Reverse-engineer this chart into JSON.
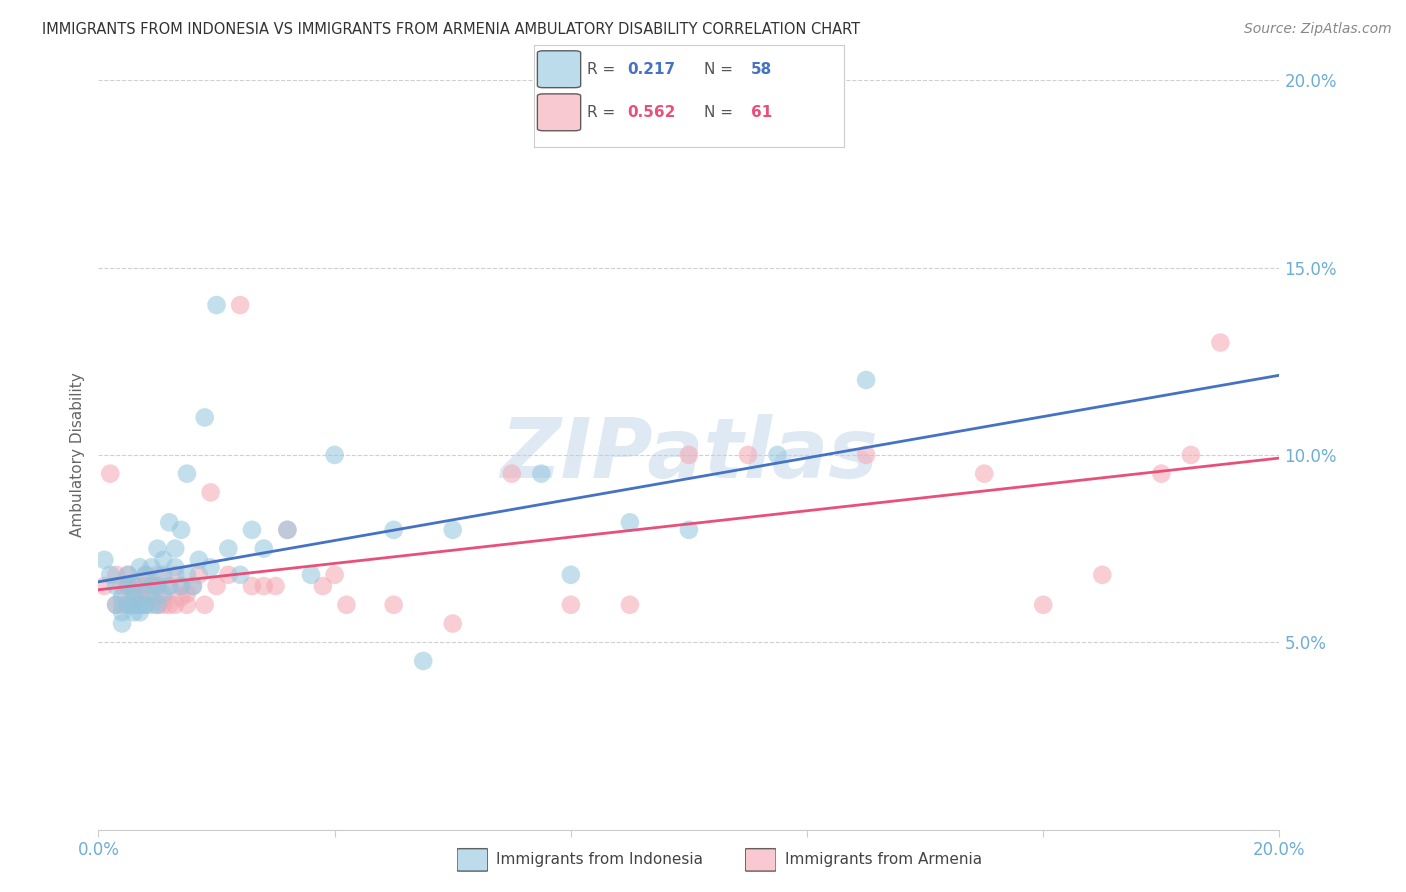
{
  "title": "IMMIGRANTS FROM INDONESIA VS IMMIGRANTS FROM ARMENIA AMBULATORY DISABILITY CORRELATION CHART",
  "source": "Source: ZipAtlas.com",
  "ylabel": "Ambulatory Disability",
  "xlim": [
    0.0,
    0.2
  ],
  "ylim": [
    0.0,
    0.2
  ],
  "ytick_labels": [
    "",
    "5.0%",
    "10.0%",
    "15.0%",
    "20.0%"
  ],
  "ytick_vals": [
    0.0,
    0.05,
    0.1,
    0.15,
    0.2
  ],
  "xtick_vals": [
    0.0,
    0.04,
    0.08,
    0.12,
    0.16,
    0.2
  ],
  "indonesia_R": 0.217,
  "indonesia_N": 58,
  "armenia_R": 0.562,
  "armenia_N": 61,
  "indonesia_color": "#92c5de",
  "armenia_color": "#f4a6b2",
  "legend_label_indonesia": "Immigrants from Indonesia",
  "legend_label_armenia": "Immigrants from Armenia",
  "indonesia_line_color": "#4472c4",
  "armenia_line_color": "#e8507a",
  "indonesia_x": [
    0.001,
    0.002,
    0.003,
    0.003,
    0.004,
    0.004,
    0.004,
    0.005,
    0.005,
    0.005,
    0.006,
    0.006,
    0.006,
    0.006,
    0.007,
    0.007,
    0.007,
    0.008,
    0.008,
    0.008,
    0.009,
    0.009,
    0.009,
    0.01,
    0.01,
    0.01,
    0.011,
    0.011,
    0.011,
    0.012,
    0.012,
    0.013,
    0.013,
    0.014,
    0.014,
    0.015,
    0.015,
    0.016,
    0.017,
    0.018,
    0.019,
    0.02,
    0.022,
    0.024,
    0.026,
    0.028,
    0.032,
    0.036,
    0.04,
    0.05,
    0.055,
    0.06,
    0.075,
    0.08,
    0.09,
    0.1,
    0.115,
    0.13
  ],
  "indonesia_y": [
    0.072,
    0.068,
    0.06,
    0.065,
    0.055,
    0.058,
    0.062,
    0.06,
    0.065,
    0.068,
    0.058,
    0.06,
    0.063,
    0.065,
    0.058,
    0.06,
    0.07,
    0.06,
    0.063,
    0.068,
    0.06,
    0.065,
    0.07,
    0.06,
    0.065,
    0.075,
    0.063,
    0.068,
    0.072,
    0.065,
    0.082,
    0.07,
    0.075,
    0.065,
    0.08,
    0.068,
    0.095,
    0.065,
    0.072,
    0.11,
    0.07,
    0.14,
    0.075,
    0.068,
    0.08,
    0.075,
    0.08,
    0.068,
    0.1,
    0.08,
    0.045,
    0.08,
    0.095,
    0.068,
    0.082,
    0.08,
    0.1,
    0.12
  ],
  "armenia_x": [
    0.001,
    0.002,
    0.003,
    0.003,
    0.004,
    0.004,
    0.005,
    0.005,
    0.005,
    0.006,
    0.006,
    0.006,
    0.007,
    0.007,
    0.007,
    0.008,
    0.008,
    0.008,
    0.009,
    0.009,
    0.01,
    0.01,
    0.01,
    0.011,
    0.011,
    0.012,
    0.012,
    0.013,
    0.013,
    0.014,
    0.014,
    0.015,
    0.015,
    0.016,
    0.017,
    0.018,
    0.019,
    0.02,
    0.022,
    0.024,
    0.026,
    0.028,
    0.03,
    0.032,
    0.038,
    0.04,
    0.042,
    0.05,
    0.06,
    0.07,
    0.08,
    0.09,
    0.1,
    0.11,
    0.13,
    0.15,
    0.16,
    0.17,
    0.18,
    0.185,
    0.19
  ],
  "armenia_y": [
    0.065,
    0.095,
    0.06,
    0.068,
    0.06,
    0.065,
    0.06,
    0.065,
    0.068,
    0.062,
    0.065,
    0.06,
    0.06,
    0.063,
    0.065,
    0.06,
    0.065,
    0.068,
    0.062,
    0.065,
    0.06,
    0.065,
    0.068,
    0.06,
    0.062,
    0.06,
    0.065,
    0.06,
    0.068,
    0.062,
    0.065,
    0.06,
    0.063,
    0.065,
    0.068,
    0.06,
    0.09,
    0.065,
    0.068,
    0.14,
    0.065,
    0.065,
    0.065,
    0.08,
    0.065,
    0.068,
    0.06,
    0.06,
    0.055,
    0.095,
    0.06,
    0.06,
    0.1,
    0.1,
    0.1,
    0.095,
    0.06,
    0.068,
    0.095,
    0.1,
    0.13
  ],
  "watermark": "ZIPatlas",
  "background_color": "#ffffff",
  "grid_color": "#d0d0d0",
  "title_color": "#333333",
  "tick_label_color": "#6baed6",
  "source_color": "#888888"
}
